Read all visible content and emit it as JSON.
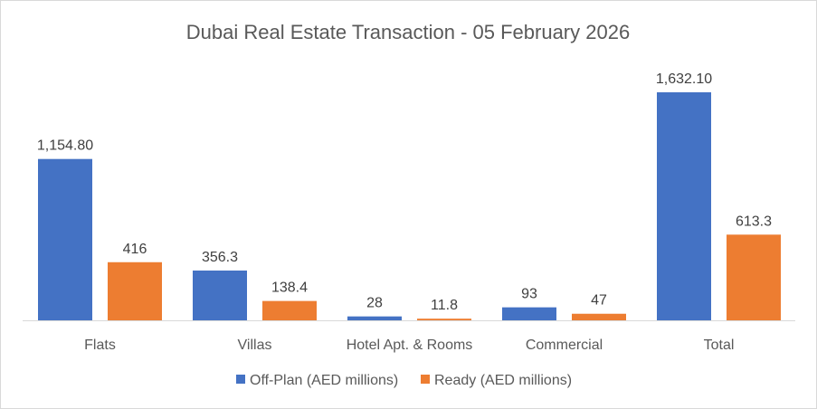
{
  "chart_data": {
    "type": "bar",
    "title": "Dubai Real Estate Transaction - 05 February 2026",
    "categories": [
      "Flats",
      "Villas",
      "Hotel Apt. & Rooms",
      "Commercial",
      "Total"
    ],
    "series": [
      {
        "name": "Off-Plan (AED millions)",
        "color": "#4472C4",
        "values": [
          1154.8,
          356.3,
          28,
          93,
          1632.1
        ],
        "labels": [
          "1,154.80",
          "356.3",
          "28",
          "93",
          "1,632.10"
        ]
      },
      {
        "name": "Ready (AED millions)",
        "color": "#ED7D31",
        "values": [
          416,
          138.4,
          11.8,
          47,
          613.3
        ],
        "labels": [
          "416",
          "138.4",
          "11.8",
          "47",
          "613.3"
        ]
      }
    ],
    "ylim": [
      0,
      1632.1
    ],
    "grid": false,
    "legend_position": "bottom"
  }
}
